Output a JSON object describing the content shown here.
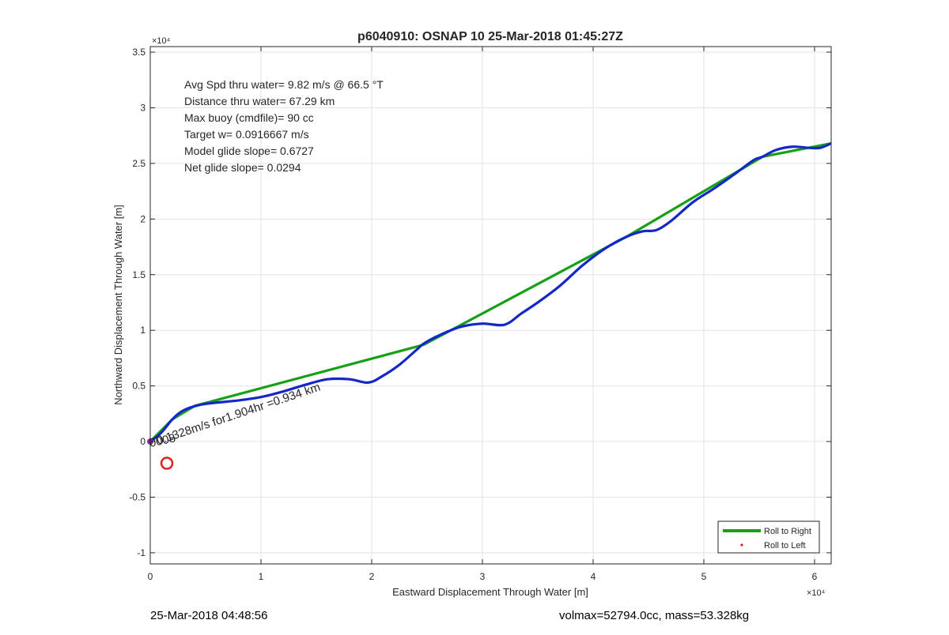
{
  "chart_data": {
    "type": "line",
    "title": "p6040910: OSNAP 10 25-Mar-2018 01:45:27Z",
    "xlabel": "Eastward Displacement Through Water [m]",
    "ylabel": "Northward Displacement Through Water [m]",
    "x_exponent_label": "×10⁴",
    "y_exponent_label": "×10⁴",
    "xlim": [
      0,
      61500
    ],
    "ylim": [
      -11000,
      35500
    ],
    "x_ticks": [
      0,
      10000,
      20000,
      30000,
      40000,
      50000,
      60000
    ],
    "x_tick_labels": [
      "0",
      "1",
      "2",
      "3",
      "4",
      "5",
      "6"
    ],
    "y_ticks": [
      -10000,
      -5000,
      0,
      5000,
      10000,
      15000,
      20000,
      25000,
      30000,
      35000
    ],
    "y_tick_labels": [
      "-1",
      "-0.5",
      "0",
      "0.5",
      "1",
      "1.5",
      "2",
      "2.5",
      "3",
      "3.5"
    ],
    "grid": true,
    "annotations": [
      "Avg Spd thru water=  9.82 m/s @  66.5 °T",
      "Distance thru water= 67.29 km",
      "Max buoy (cmdfile)= 90 cc",
      "Target w= 0.0916667 m/s",
      "Model glide slope= 0.6727",
      "Net glide slope= 0.0294"
    ],
    "current_label": "0.1328m/s for1.904hr =0.934 km",
    "start_label": "0008",
    "legend": {
      "placement": "bottom-right",
      "entries": [
        {
          "label": "Roll to Right",
          "color": "#16a016",
          "kind": "line"
        },
        {
          "label": "Roll to Left",
          "color": "#e02020",
          "kind": "dot"
        }
      ]
    },
    "series": [
      {
        "color": "#16a016",
        "kind": "straight-segments",
        "x": [
          0,
          2000,
          4000,
          24700,
          43000,
          55300,
          61500
        ],
        "y": [
          0,
          2000,
          3200,
          8700,
          18400,
          25600,
          26800
        ]
      },
      {
        "color": "#1428c8",
        "kind": "track",
        "x": [
          0,
          1000,
          2000,
          3000,
          4500,
          6000,
          8000,
          10000,
          12000,
          14000,
          16000,
          18000,
          19700,
          21000,
          22500,
          24000,
          24700,
          26000,
          28000,
          30000,
          32000,
          33500,
          35000,
          37000,
          39000,
          41000,
          43000,
          44500,
          45700,
          47000,
          49000,
          51000,
          53000,
          54500,
          55300,
          56500,
          58000,
          59500,
          60500,
          61500
        ],
        "y": [
          0,
          800,
          2000,
          2800,
          3300,
          3500,
          3700,
          4000,
          4500,
          5100,
          5600,
          5600,
          5300,
          5900,
          6900,
          8200,
          8800,
          9500,
          10300,
          10600,
          10500,
          11500,
          12500,
          14000,
          15800,
          17300,
          18400,
          18900,
          19000,
          19800,
          21500,
          22800,
          24200,
          25300,
          25600,
          26200,
          26500,
          26400,
          26400,
          26800
        ]
      }
    ],
    "markers": [
      {
        "kind": "start-circle",
        "x": 1500,
        "y": -1950,
        "color": "#e02020"
      }
    ]
  },
  "footer": {
    "left": "25-Mar-2018 04:48:56",
    "right": "volmax=52794.0cc, mass=53.328kg"
  }
}
